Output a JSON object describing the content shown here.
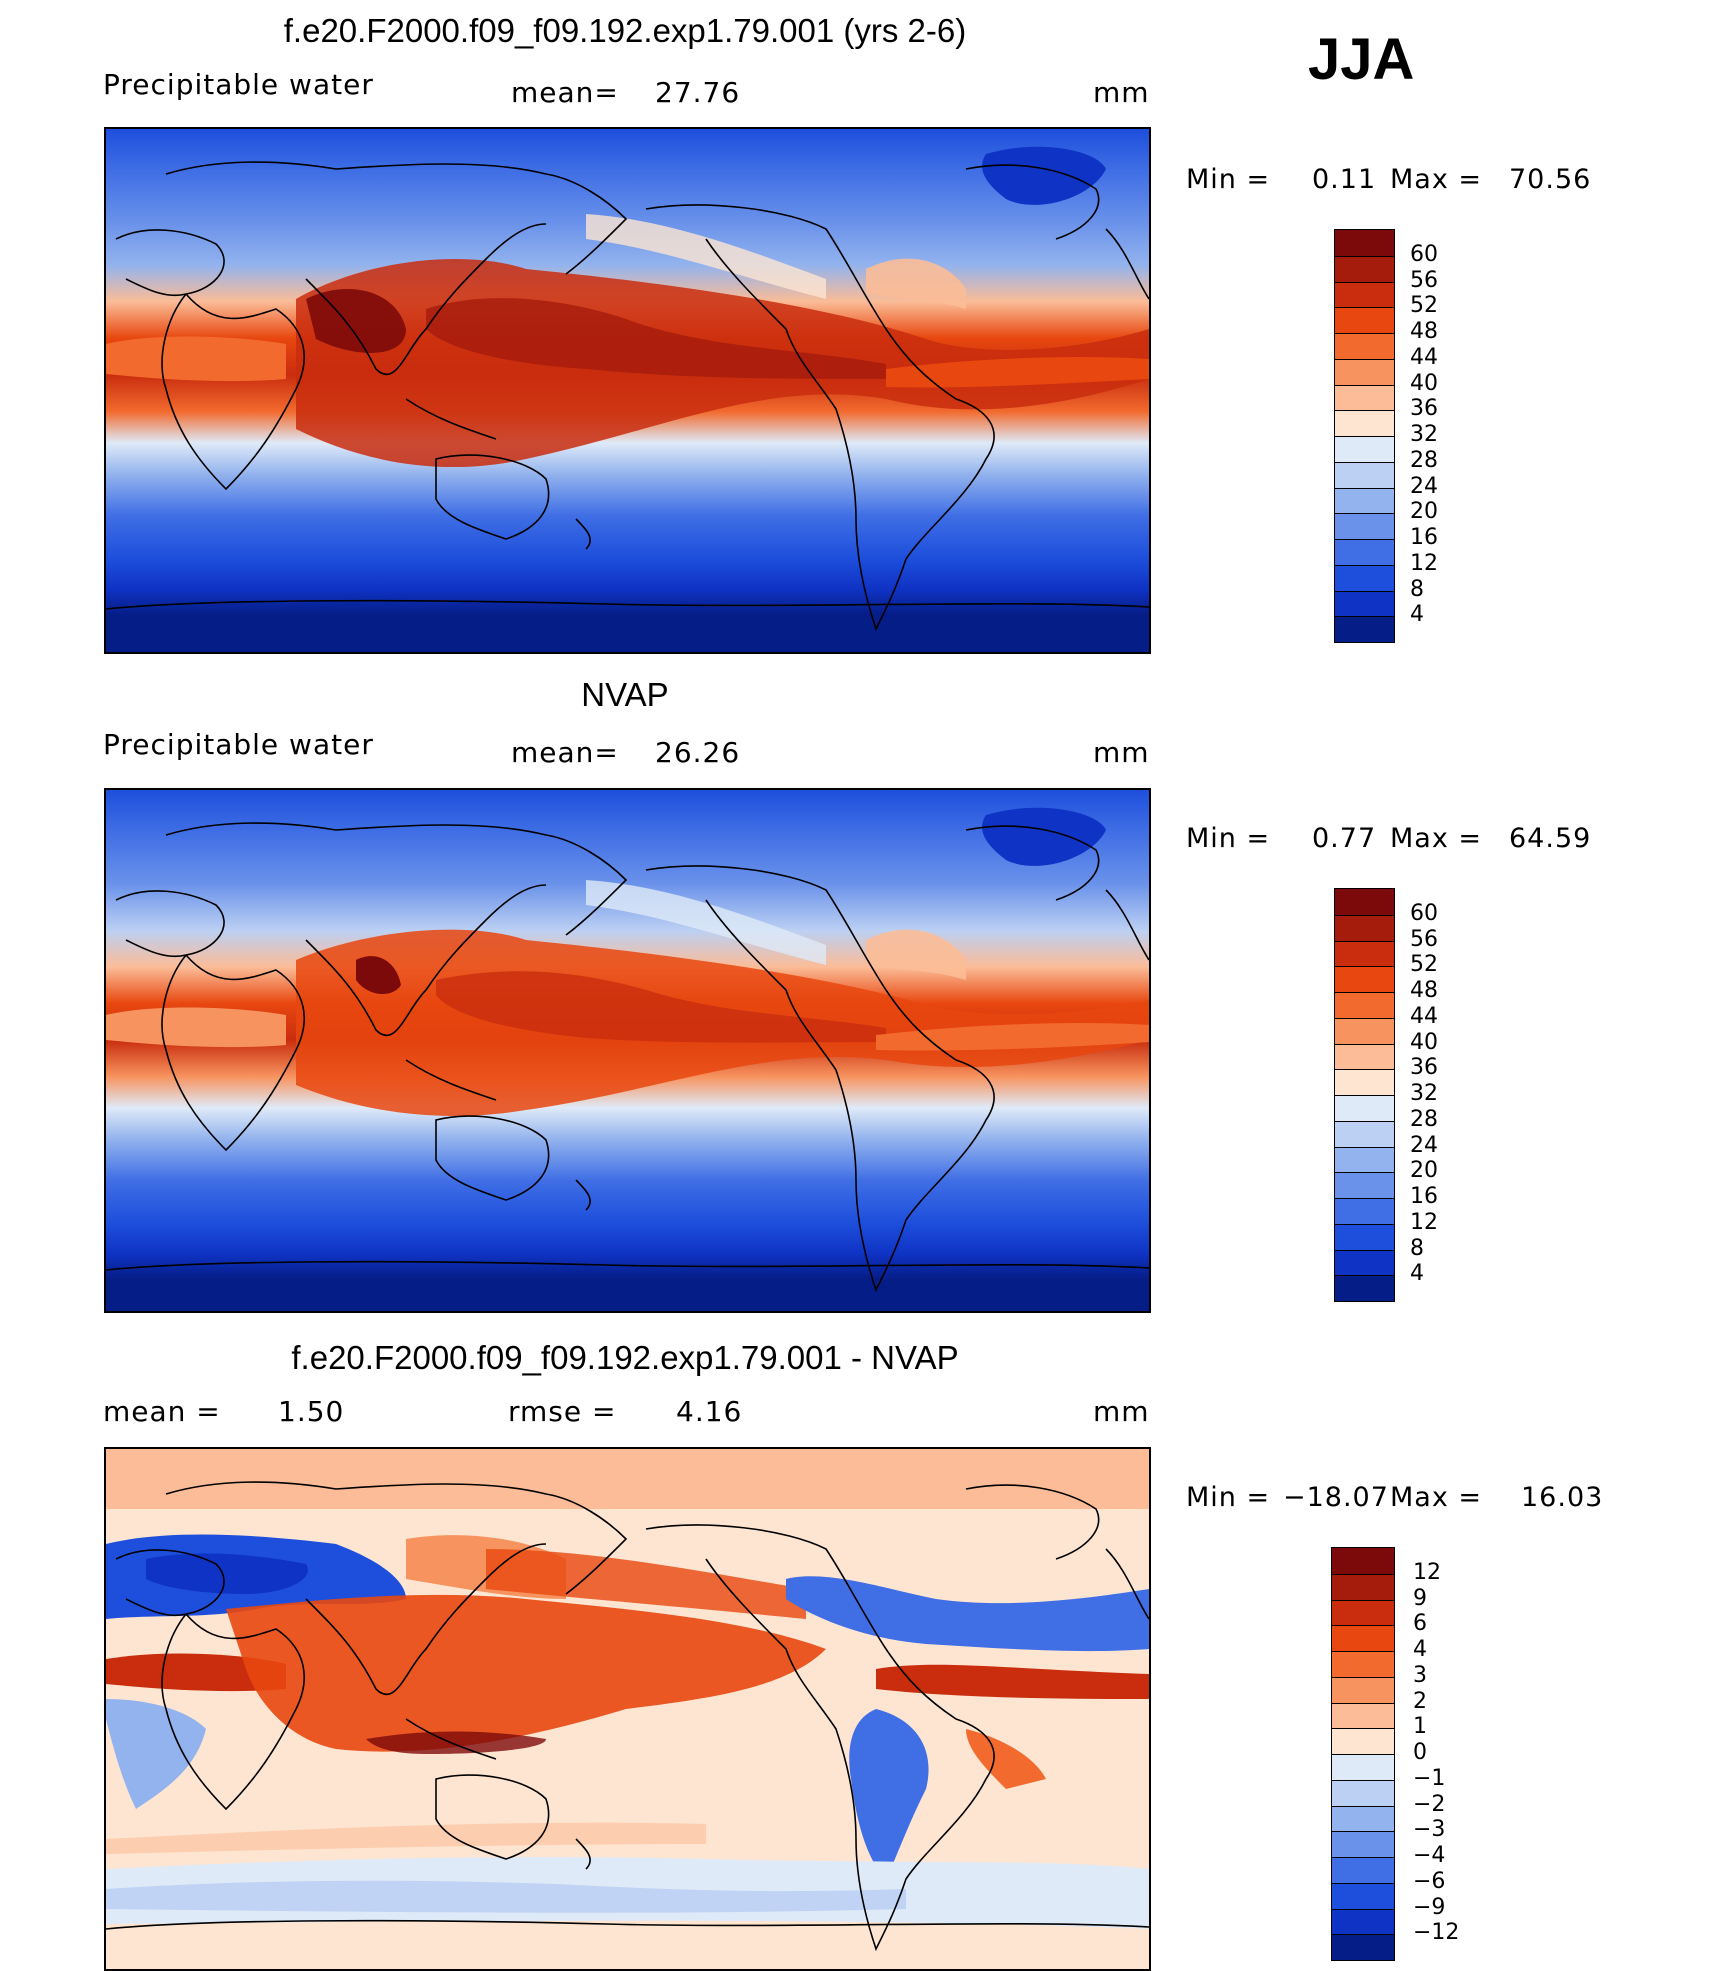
{
  "season": "JJA",
  "panels": [
    {
      "id": "model",
      "title": "f.e20.F2000.f09_f09.192.exp1.79.001 (yrs 2-6)",
      "left_label": "Precipitable  water",
      "mid_label": "mean=",
      "mid_value": "27.76",
      "units": "mm",
      "min_label": "Min  =",
      "min_value": "0.11",
      "max_label": "Max  =",
      "max_value": "70.56"
    },
    {
      "id": "obs",
      "title": "NVAP",
      "left_label": "Precipitable  water",
      "mid_label": "mean=",
      "mid_value": "26.26",
      "units": "mm",
      "min_label": "Min  =",
      "min_value": "0.77",
      "max_label": "Max  =",
      "max_value": "64.59"
    },
    {
      "id": "diff",
      "title": "f.e20.F2000.f09_f09.192.exp1.79.001 - NVAP",
      "left_label": "mean  =",
      "left_value": "1.50",
      "mid_label": "rmse  =",
      "mid_value": "4.16",
      "units": "mm",
      "min_label": "Min  =",
      "min_value": "−18.07",
      "max_label": "Max  =",
      "max_value": "16.03"
    }
  ],
  "colorbars": {
    "abs": {
      "labels": [
        "60",
        "56",
        "52",
        "48",
        "44",
        "40",
        "36",
        "32",
        "28",
        "24",
        "20",
        "16",
        "12",
        "8",
        "4"
      ],
      "colors": [
        "#7d0a0a",
        "#a51c0c",
        "#c92d0e",
        "#e8470f",
        "#f26a2e",
        "#f7935e",
        "#fbbc97",
        "#fde5d2",
        "#dfeaf8",
        "#bcd0f3",
        "#93b3ee",
        "#6a92ea",
        "#3f6ee5",
        "#1e4fdc",
        "#0f33c4",
        "#051d86"
      ]
    },
    "diff": {
      "labels": [
        "12",
        "9",
        "6",
        "4",
        "3",
        "2",
        "1",
        "0",
        "−1",
        "−2",
        "−3",
        "−4",
        "−6",
        "−9",
        "−12"
      ],
      "colors": [
        "#7d0a0a",
        "#a51c0c",
        "#c92d0e",
        "#e8470f",
        "#f26a2e",
        "#f7935e",
        "#fbbc97",
        "#fde5d2",
        "#dfeaf8",
        "#bcd0f3",
        "#93b3ee",
        "#6a92ea",
        "#3f6ee5",
        "#1e4fdc",
        "#0f33c4",
        "#051d86"
      ]
    }
  }
}
